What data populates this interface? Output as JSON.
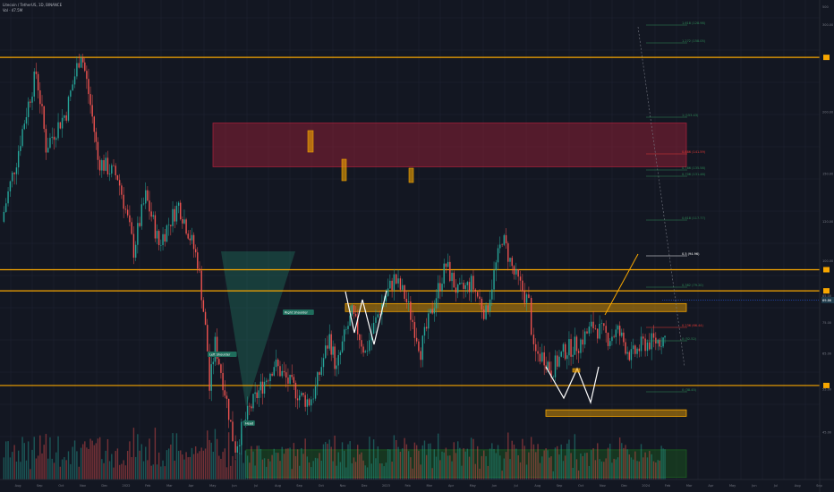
{
  "header": {
    "symbol_line": "Litecoin / TetherUS, 1D, BINANCE",
    "vol_line": "Vol · 47.5M"
  },
  "colors": {
    "background": "#131722",
    "grid": "#1f2433",
    "up": "#26a69a",
    "down": "#ef5350",
    "level_orange": "#f7a600",
    "zone_red": "#a3213a",
    "zone_green": "#1b5e20",
    "fib_green": "#2e8b57",
    "fib_red": "#e53935",
    "pattern_white": "#ffffff",
    "price_tag_bg": "#1e3a4a"
  },
  "chart_data": {
    "type": "candlestick",
    "title": "Litecoin / TetherUS, 1D, BINANCE",
    "series": [
      {
        "name": "LTC/USDT",
        "values": [
          {
            "date": "2021-07-20",
            "close": 120
          },
          {
            "date": "2021-08-10",
            "close": 160
          },
          {
            "date": "2021-09-07",
            "close": 240
          },
          {
            "date": "2021-09-21",
            "close": 170
          },
          {
            "date": "2021-10-20",
            "close": 200
          },
          {
            "date": "2021-11-10",
            "close": 265
          },
          {
            "date": "2021-12-04",
            "close": 160
          },
          {
            "date": "2022-01-01",
            "close": 148
          },
          {
            "date": "2022-01-24",
            "close": 105
          },
          {
            "date": "2022-02-10",
            "close": 135
          },
          {
            "date": "2022-03-01",
            "close": 108
          },
          {
            "date": "2022-03-29",
            "close": 130
          },
          {
            "date": "2022-04-25",
            "close": 100
          },
          {
            "date": "2022-05-09",
            "close": 66
          },
          {
            "date": "2022-05-12",
            "close": 55
          },
          {
            "date": "2022-05-20",
            "close": 68
          },
          {
            "date": "2022-06-14",
            "close": 44
          },
          {
            "date": "2022-06-18",
            "close": 42
          },
          {
            "date": "2022-07-08",
            "close": 50
          },
          {
            "date": "2022-08-01",
            "close": 58
          },
          {
            "date": "2022-08-12",
            "close": 62
          },
          {
            "date": "2022-09-01",
            "close": 57
          },
          {
            "date": "2022-09-20",
            "close": 53
          },
          {
            "date": "2022-10-01",
            "close": 52
          },
          {
            "date": "2022-10-10",
            "close": 55
          },
          {
            "date": "2022-10-30",
            "close": 70
          },
          {
            "date": "2022-11-09",
            "close": 60
          },
          {
            "date": "2022-11-20",
            "close": 70
          },
          {
            "date": "2022-12-01",
            "close": 78
          },
          {
            "date": "2022-12-20",
            "close": 65
          },
          {
            "date": "2023-01-10",
            "close": 80
          },
          {
            "date": "2023-01-30",
            "close": 92
          },
          {
            "date": "2023-02-14",
            "close": 85
          },
          {
            "date": "2023-03-09",
            "close": 66
          },
          {
            "date": "2023-03-20",
            "close": 75
          },
          {
            "date": "2023-04-14",
            "close": 98
          },
          {
            "date": "2023-05-01",
            "close": 86
          },
          {
            "date": "2023-05-20",
            "close": 90
          },
          {
            "date": "2023-06-10",
            "close": 78
          },
          {
            "date": "2023-06-30",
            "close": 106
          },
          {
            "date": "2023-07-03",
            "close": 112
          },
          {
            "date": "2023-07-20",
            "close": 94
          },
          {
            "date": "2023-08-10",
            "close": 82
          },
          {
            "date": "2023-08-17",
            "close": 65
          },
          {
            "date": "2023-09-01",
            "close": 64
          },
          {
            "date": "2023-09-11",
            "close": 60
          },
          {
            "date": "2023-10-01",
            "close": 66
          },
          {
            "date": "2023-10-20",
            "close": 68
          },
          {
            "date": "2023-11-10",
            "close": 74
          },
          {
            "date": "2023-12-01",
            "close": 70
          },
          {
            "date": "2023-12-15",
            "close": 72
          },
          {
            "date": "2024-01-03",
            "close": 64
          },
          {
            "date": "2024-01-20",
            "close": 68
          },
          {
            "date": "2024-02-10",
            "close": 69
          },
          {
            "date": "2024-02-20",
            "close": 70
          }
        ]
      }
    ],
    "x_ticks": [
      "Aug",
      "Sep",
      "Oct",
      "Nov",
      "Dec",
      "2022",
      "Feb",
      "Mar",
      "Apr",
      "May",
      "Jun",
      "Jul",
      "Aug",
      "Sep",
      "Oct",
      "Nov",
      "Dec",
      "2023",
      "Feb",
      "Mar",
      "Apr",
      "May",
      "Jun",
      "Jul",
      "Aug",
      "Sep",
      "Oct",
      "Nov",
      "Dec",
      "2024",
      "Feb",
      "Mar",
      "Apr",
      "May",
      "Jun",
      "Jul",
      "Aug",
      "Sep"
    ],
    "y_ticks": [
      "500",
      "300.00",
      "200.00",
      "150.00",
      "120.00",
      "100.00",
      "85.00",
      "75.00",
      "65.00",
      "55.00",
      "45.00"
    ],
    "horizontal_levels": [
      {
        "price": 258,
        "color": "orange"
      },
      {
        "price": 96,
        "color": "orange"
      },
      {
        "price": 87,
        "color": "orange"
      },
      {
        "price": 56,
        "color": "orange"
      }
    ],
    "zones": [
      {
        "top": 190,
        "bottom": 155,
        "color": "red"
      },
      {
        "top": 82,
        "bottom": 79,
        "color": "orange"
      },
      {
        "top": 50,
        "bottom": 48.5,
        "color": "orange"
      },
      {
        "top": 41.5,
        "bottom": 36.5,
        "color": "green"
      }
    ],
    "fib_labels": [
      "1.618 (128.98)",
      "1.272 (158.05)",
      "1 (153.43)",
      "0.886 (141.59)",
      "0.786 (135.58)",
      "0.706 (131.46)",
      "0.618 (117.77)",
      "0.5 (94.96)",
      "0.382 (79.20)",
      "0.236 (66.44)",
      "0 (52.52)",
      "0 (38.45)"
    ],
    "annotations": [
      "Left Shoulder",
      "Right Shoulder",
      "Head"
    ],
    "last_price": "69.86"
  }
}
